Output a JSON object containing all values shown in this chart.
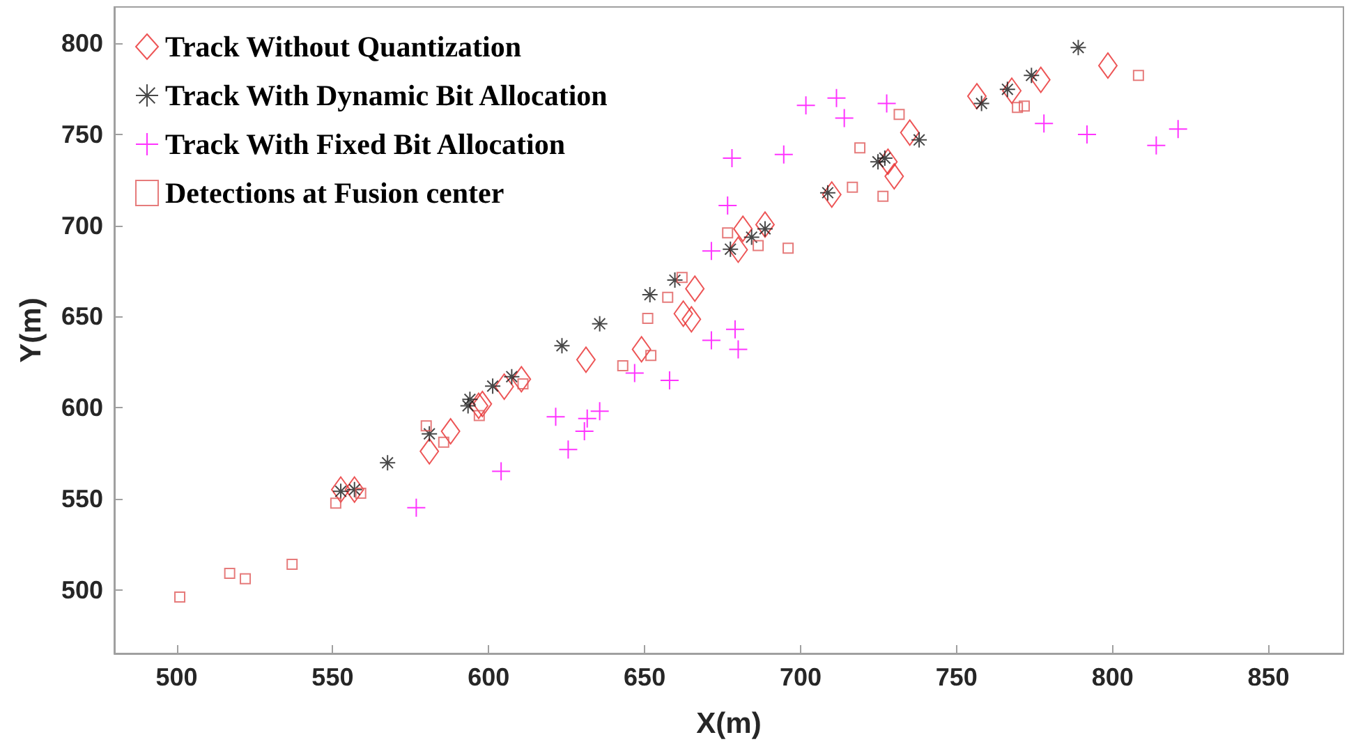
{
  "chart_data": {
    "type": "scatter",
    "xlabel": "X(m)",
    "ylabel": "Y(m)",
    "xlim": [
      480,
      874
    ],
    "ylim": [
      465,
      820
    ],
    "xticks": [
      500,
      550,
      600,
      650,
      700,
      750,
      800,
      850
    ],
    "yticks": [
      500,
      550,
      600,
      650,
      700,
      750,
      800
    ],
    "grid": false,
    "legend": "top left",
    "series": [
      {
        "name": "Track Without Quantization",
        "color": "#e8292b",
        "marker": "diamond",
        "x": [
          552.6,
          557,
          581,
          587.8,
          596.8,
          598,
          605,
          610.5,
          631.2,
          649,
          662.4,
          665,
          666.1,
          680,
          681.5,
          688.6,
          710,
          728,
          730,
          735,
          756.5,
          767.7,
          777,
          798.5
        ],
        "values": [
          555,
          555,
          576,
          587,
          601,
          602,
          611.5,
          615.6,
          626.3,
          632,
          651.6,
          648.5,
          665.3,
          686.7,
          698.2,
          700.5,
          717,
          735,
          727,
          751,
          771,
          774,
          780,
          787.8
        ]
      },
      {
        "name": "Track With Dynamic Bit Allocation",
        "color": "#1a1a1a",
        "x": [
          552.6,
          557,
          567.6,
          581,
          593.4,
          594,
          601.3,
          607.4,
          623.5,
          635.6,
          651.7,
          659.7,
          677.5,
          684.3,
          688.6,
          708.7,
          724.8,
          727,
          738,
          758,
          766.3,
          774,
          789
        ],
        "values": [
          554,
          555,
          569.7,
          585.6,
          601,
          604.5,
          611.8,
          617,
          634,
          646,
          662,
          670,
          687,
          693.6,
          698.2,
          718,
          735,
          737,
          747,
          767,
          774.8,
          782.4,
          797.7
        ]
      },
      {
        "name": "Track With Fixed Bit Allocation",
        "color": "#ff00ff",
        "marker": "cross",
        "x": [
          576.8,
          604,
          621.5,
          625.5,
          630.7,
          631.6,
          635.6,
          646.8,
          658,
          671.4,
          679,
          680,
          671.4,
          676.6,
          678,
          694.6,
          701.7,
          711.5,
          714,
          727.6,
          778,
          791.8,
          814,
          821
        ],
        "values": [
          545,
          565,
          595,
          577,
          587,
          594,
          598,
          619,
          615,
          637,
          643,
          632,
          686,
          711,
          737,
          739,
          766,
          770,
          759,
          767,
          756,
          750,
          744,
          753
        ]
      },
      {
        "name": "Detections at Fusion center",
        "color": "#e05a5a",
        "marker": "square",
        "x": [
          501,
          517,
          522,
          537,
          551,
          559,
          580,
          585.6,
          597,
          611,
          643,
          652,
          651,
          657.4,
          662,
          676.6,
          686.4,
          696,
          719,
          716.6,
          726.4,
          731.6,
          769.5,
          771.7,
          808.3
        ],
        "values": [
          496,
          509,
          506,
          514,
          547.5,
          553,
          590,
          581,
          595.6,
          613,
          623,
          628.6,
          649,
          660.6,
          671.5,
          696,
          689,
          687.5,
          742.6,
          721,
          716,
          761,
          764.8,
          765.6,
          782.4
        ]
      }
    ]
  }
}
